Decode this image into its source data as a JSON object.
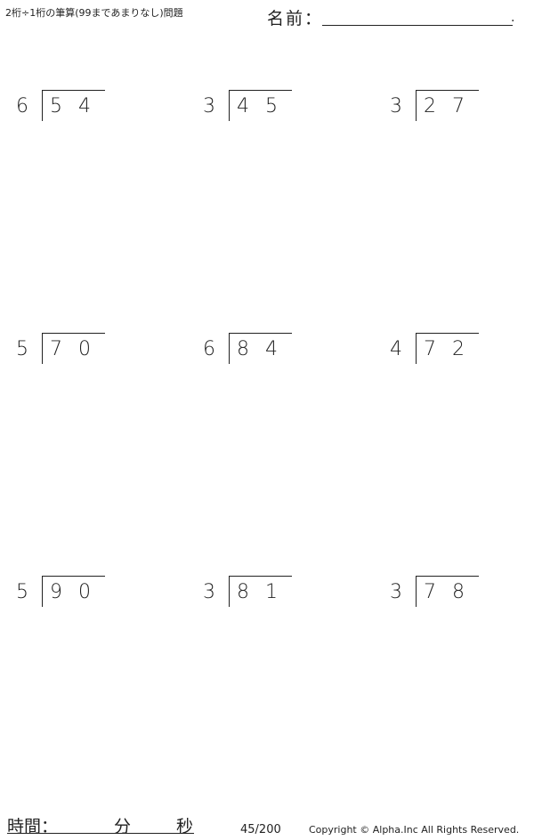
{
  "header": {
    "title": "2桁÷1桁の筆算(99まであまりなし)問題",
    "name_label": "名前：",
    "name_end": "."
  },
  "problems": [
    {
      "divisor": "6",
      "d1": "5",
      "d2": "4"
    },
    {
      "divisor": "3",
      "d1": "4",
      "d2": "5"
    },
    {
      "divisor": "3",
      "d1": "2",
      "d2": "7"
    },
    {
      "divisor": "5",
      "d1": "7",
      "d2": "0"
    },
    {
      "divisor": "6",
      "d1": "8",
      "d2": "4"
    },
    {
      "divisor": "4",
      "d1": "7",
      "d2": "2"
    },
    {
      "divisor": "5",
      "d1": "9",
      "d2": "0"
    },
    {
      "divisor": "3",
      "d1": "8",
      "d2": "1"
    },
    {
      "divisor": "3",
      "d1": "7",
      "d2": "8"
    }
  ],
  "footer": {
    "time_label": "時間：",
    "minutes_label": "分",
    "seconds_label": "秒",
    "page": "45/200",
    "copyright": "Copyright © Alpha.Inc All Rights Reserved."
  }
}
